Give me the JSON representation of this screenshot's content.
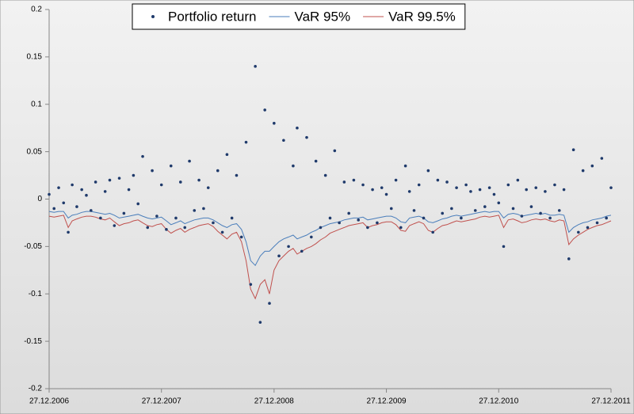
{
  "chart_data": {
    "type": "scatter",
    "x": [
      "27.12.2006",
      "12.01.2007",
      "27.01.2007",
      "12.02.2007",
      "27.02.2007",
      "12.03.2007",
      "27.03.2007",
      "12.04.2007",
      "27.04.2007",
      "12.05.2007",
      "27.05.2007",
      "12.06.2007",
      "27.06.2007",
      "12.07.2007",
      "27.07.2007",
      "12.08.2007",
      "27.08.2007",
      "12.09.2007",
      "27.09.2007",
      "12.10.2007",
      "27.10.2007",
      "12.11.2007",
      "27.11.2007",
      "12.12.2007",
      "27.12.2007",
      "12.01.2008",
      "27.01.2008",
      "12.02.2008",
      "27.02.2008",
      "12.03.2008",
      "27.03.2008",
      "12.04.2008",
      "27.04.2008",
      "12.05.2008",
      "27.05.2008",
      "12.06.2008",
      "27.06.2008",
      "12.07.2008",
      "27.07.2008",
      "12.08.2008",
      "27.08.2008",
      "12.09.2008",
      "27.09.2008",
      "12.10.2008",
      "27.10.2008",
      "12.11.2008",
      "27.11.2008",
      "12.12.2008",
      "27.12.2008",
      "12.01.2009",
      "27.01.2009",
      "12.02.2009",
      "27.02.2009",
      "12.03.2009",
      "27.03.2009",
      "12.04.2009",
      "27.04.2009",
      "12.05.2009",
      "27.05.2009",
      "12.06.2009",
      "27.06.2009",
      "12.07.2009",
      "27.07.2009",
      "12.08.2009",
      "27.08.2009",
      "12.09.2009",
      "27.09.2009",
      "12.10.2009",
      "27.10.2009",
      "12.11.2009",
      "27.11.2009",
      "12.12.2009",
      "27.12.2009",
      "12.01.2010",
      "27.01.2010",
      "12.02.2010",
      "27.02.2010",
      "12.03.2010",
      "27.03.2010",
      "12.04.2010",
      "27.04.2010",
      "12.05.2010",
      "27.05.2010",
      "12.06.2010",
      "27.06.2010",
      "12.07.2010",
      "27.07.2010",
      "12.08.2010",
      "27.08.2010",
      "12.09.2010",
      "27.09.2010",
      "12.10.2010",
      "27.10.2010",
      "12.11.2010",
      "27.11.2010",
      "12.12.2010",
      "27.12.2010",
      "12.01.2011",
      "27.01.2011",
      "12.02.2011",
      "27.02.2011",
      "12.03.2011",
      "27.03.2011",
      "12.04.2011",
      "27.04.2011",
      "12.05.2011",
      "27.05.2011",
      "12.06.2011",
      "27.06.2011",
      "12.07.2011",
      "27.07.2011",
      "12.08.2011",
      "27.08.2011",
      "12.09.2011",
      "27.09.2011",
      "12.10.2011",
      "27.10.2011",
      "12.11.2011",
      "27.11.2011",
      "12.12.2011",
      "27.12.2011"
    ],
    "series": [
      {
        "name": "Portfolio return",
        "type": "scatter",
        "color": "#1f3a6b",
        "values": [
          0.005,
          -0.01,
          0.012,
          -0.004,
          -0.035,
          0.015,
          -0.008,
          0.01,
          0.004,
          -0.012,
          0.018,
          -0.02,
          0.008,
          0.02,
          -0.028,
          0.022,
          -0.015,
          0.01,
          0.025,
          -0.005,
          0.045,
          -0.03,
          0.03,
          -0.018,
          0.015,
          -0.032,
          0.035,
          -0.02,
          0.018,
          -0.03,
          0.04,
          -0.012,
          0.02,
          -0.01,
          0.012,
          -0.025,
          0.03,
          -0.035,
          0.047,
          -0.02,
          0.025,
          -0.04,
          0.06,
          -0.09,
          0.14,
          -0.13,
          0.094,
          -0.11,
          0.08,
          -0.06,
          0.062,
          -0.05,
          0.035,
          0.075,
          -0.055,
          0.065,
          -0.04,
          0.04,
          -0.03,
          0.025,
          -0.02,
          0.051,
          -0.025,
          0.018,
          -0.015,
          0.02,
          -0.022,
          0.015,
          -0.03,
          0.01,
          -0.025,
          0.012,
          0.005,
          -0.01,
          0.02,
          -0.03,
          0.035,
          0.008,
          -0.012,
          0.015,
          -0.02,
          0.03,
          -0.035,
          0.02,
          -0.015,
          0.018,
          -0.01,
          0.012,
          -0.02,
          0.015,
          0.008,
          -0.012,
          0.01,
          -0.008,
          0.012,
          0.005,
          -0.004,
          -0.05,
          0.015,
          -0.01,
          0.02,
          -0.018,
          0.01,
          -0.008,
          0.012,
          -0.015,
          0.008,
          -0.02,
          0.015,
          -0.012,
          0.01,
          -0.063,
          0.052,
          -0.035,
          0.03,
          -0.03,
          0.035,
          -0.025,
          0.043,
          -0.02,
          0.012
        ]
      },
      {
        "name": "VaR 95%",
        "type": "line",
        "color": "#4a7ebb",
        "values": [
          -0.013,
          -0.014,
          -0.013,
          -0.013,
          -0.02,
          -0.017,
          -0.016,
          -0.014,
          -0.013,
          -0.013,
          -0.014,
          -0.015,
          -0.016,
          -0.015,
          -0.017,
          -0.02,
          -0.019,
          -0.018,
          -0.017,
          -0.016,
          -0.018,
          -0.02,
          -0.021,
          -0.02,
          -0.019,
          -0.023,
          -0.027,
          -0.025,
          -0.023,
          -0.026,
          -0.024,
          -0.022,
          -0.021,
          -0.02,
          -0.02,
          -0.022,
          -0.025,
          -0.028,
          -0.03,
          -0.027,
          -0.026,
          -0.032,
          -0.045,
          -0.065,
          -0.07,
          -0.06,
          -0.055,
          -0.055,
          -0.05,
          -0.045,
          -0.042,
          -0.04,
          -0.038,
          -0.042,
          -0.04,
          -0.038,
          -0.035,
          -0.033,
          -0.03,
          -0.028,
          -0.026,
          -0.025,
          -0.024,
          -0.022,
          -0.021,
          -0.02,
          -0.02,
          -0.019,
          -0.022,
          -0.021,
          -0.02,
          -0.019,
          -0.018,
          -0.018,
          -0.02,
          -0.024,
          -0.025,
          -0.02,
          -0.019,
          -0.018,
          -0.02,
          -0.024,
          -0.025,
          -0.023,
          -0.021,
          -0.02,
          -0.018,
          -0.017,
          -0.018,
          -0.017,
          -0.016,
          -0.015,
          -0.014,
          -0.013,
          -0.014,
          -0.013,
          -0.013,
          -0.02,
          -0.016,
          -0.015,
          -0.016,
          -0.018,
          -0.017,
          -0.016,
          -0.015,
          -0.016,
          -0.015,
          -0.017,
          -0.017,
          -0.016,
          -0.017,
          -0.035,
          -0.03,
          -0.027,
          -0.025,
          -0.024,
          -0.022,
          -0.021,
          -0.02,
          -0.018,
          -0.017
        ]
      },
      {
        "name": "VaR 99.5%",
        "type": "line",
        "color": "#c0504d",
        "values": [
          -0.018,
          -0.019,
          -0.018,
          -0.017,
          -0.03,
          -0.023,
          -0.021,
          -0.019,
          -0.018,
          -0.018,
          -0.019,
          -0.021,
          -0.022,
          -0.02,
          -0.024,
          -0.028,
          -0.026,
          -0.025,
          -0.023,
          -0.022,
          -0.025,
          -0.028,
          -0.029,
          -0.027,
          -0.026,
          -0.032,
          -0.036,
          -0.033,
          -0.031,
          -0.035,
          -0.032,
          -0.03,
          -0.028,
          -0.027,
          -0.026,
          -0.029,
          -0.034,
          -0.038,
          -0.042,
          -0.037,
          -0.035,
          -0.045,
          -0.065,
          -0.095,
          -0.105,
          -0.09,
          -0.085,
          -0.1,
          -0.075,
          -0.065,
          -0.06,
          -0.055,
          -0.052,
          -0.058,
          -0.055,
          -0.052,
          -0.05,
          -0.047,
          -0.043,
          -0.04,
          -0.036,
          -0.034,
          -0.032,
          -0.03,
          -0.028,
          -0.027,
          -0.026,
          -0.025,
          -0.03,
          -0.028,
          -0.027,
          -0.025,
          -0.024,
          -0.024,
          -0.027,
          -0.033,
          -0.034,
          -0.028,
          -0.026,
          -0.024,
          -0.026,
          -0.033,
          -0.035,
          -0.031,
          -0.028,
          -0.027,
          -0.025,
          -0.023,
          -0.024,
          -0.023,
          -0.022,
          -0.021,
          -0.019,
          -0.018,
          -0.019,
          -0.018,
          -0.017,
          -0.03,
          -0.022,
          -0.021,
          -0.023,
          -0.025,
          -0.024,
          -0.022,
          -0.021,
          -0.022,
          -0.021,
          -0.023,
          -0.024,
          -0.022,
          -0.023,
          -0.048,
          -0.042,
          -0.038,
          -0.035,
          -0.032,
          -0.03,
          -0.028,
          -0.027,
          -0.025,
          -0.023
        ]
      }
    ],
    "xlim": [
      "27.12.2006",
      "27.12.2011"
    ],
    "xticks": [
      "27.12.2006",
      "27.12.2007",
      "27.12.2008",
      "27.12.2009",
      "27.12.2010",
      "27.12.2011"
    ],
    "ylim": [
      -0.2,
      0.2
    ],
    "yticks": [
      -0.2,
      -0.15,
      -0.1,
      -0.05,
      0,
      0.05,
      0.1,
      0.15,
      0.2
    ],
    "grid": false,
    "legend": "top"
  }
}
